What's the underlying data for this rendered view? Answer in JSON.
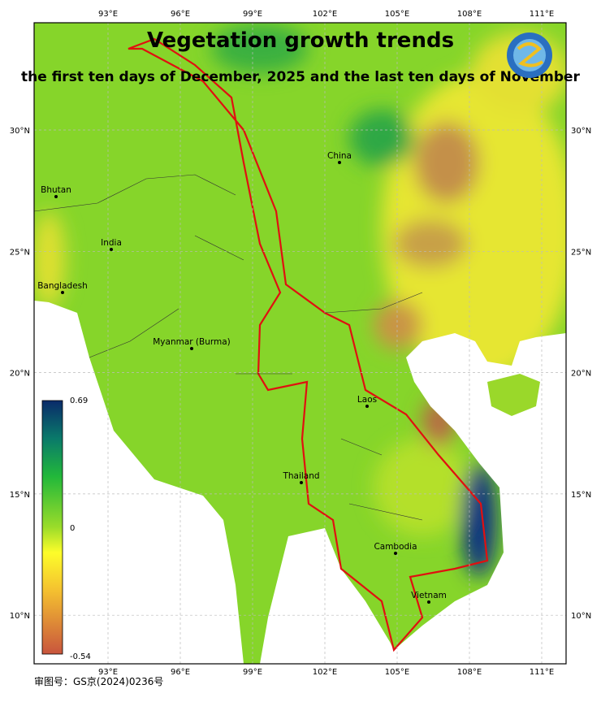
{
  "header": {
    "title": "Vegetation growth trends",
    "subtitle": "the first ten days of December, 2025 and the last ten days of November"
  },
  "axes": {
    "lon_labels": [
      "93°E",
      "96°E",
      "99°E",
      "102°E",
      "105°E",
      "108°E",
      "111°E"
    ],
    "lat_labels": [
      "30°N",
      "25°N",
      "20°N",
      "15°N",
      "10°N"
    ]
  },
  "places": [
    "China",
    "Bhutan",
    "India",
    "Bangladesh",
    "Myanmar (Burma)",
    "Laos",
    "Thailand",
    "Cambodia",
    "Vietnam"
  ],
  "colorbar": {
    "max": 0.69,
    "zero": 0,
    "min": -0.54
  },
  "footer": "审图号：GS京(2024)0236号"
}
